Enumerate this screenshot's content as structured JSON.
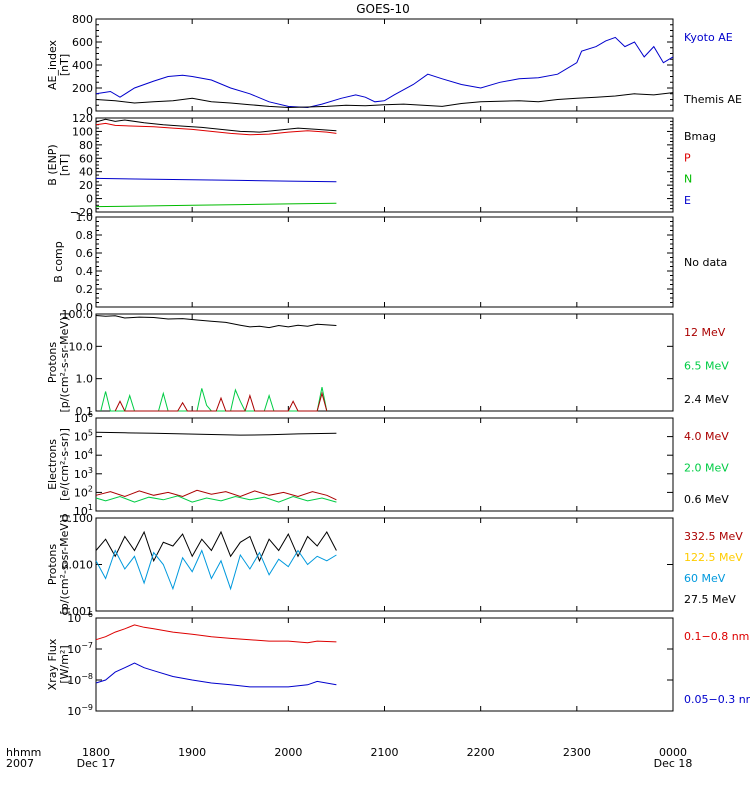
{
  "title": "GOES-10",
  "x_axis": {
    "row_label": "hhmm",
    "year": "2007",
    "ticks": [
      "1800",
      "1900",
      "2000",
      "2100",
      "2200",
      "2300",
      "0000"
    ],
    "tick_hours": [
      0,
      1,
      2,
      3,
      4,
      5,
      6
    ],
    "date_labels": [
      {
        "text": "Dec 17",
        "hour": 0
      },
      {
        "text": "Dec 18",
        "hour": 6
      }
    ],
    "range_hours": [
      0,
      6
    ]
  },
  "chart_data": [
    {
      "type": "line",
      "ylabel": "AE_index [nT]",
      "ylabel_lines": [
        "AE_index",
        "[nT]"
      ],
      "scale": "linear",
      "ylim": [
        0,
        800
      ],
      "ytick_values": [
        0,
        200,
        400,
        600,
        800
      ],
      "ytick_labels": [
        "0",
        "200",
        "400",
        "600",
        "800"
      ],
      "legend": [
        {
          "text": "Kyoto AE",
          "color": "#0000cc"
        },
        {
          "text": "Themis AE",
          "color": "#000000"
        }
      ],
      "series": [
        {
          "name": "Kyoto AE",
          "color": "#0000cc",
          "x": [
            0,
            0.15,
            0.25,
            0.4,
            0.6,
            0.75,
            0.9,
            1.0,
            1.2,
            1.4,
            1.6,
            1.8,
            2.0,
            2.2,
            2.35,
            2.55,
            2.7,
            2.8,
            2.9,
            3.0,
            3.1,
            3.3,
            3.45,
            3.6,
            3.8,
            4.0,
            4.2,
            4.4,
            4.6,
            4.8,
            5.0,
            5.05,
            5.2,
            5.3,
            5.4,
            5.5,
            5.6,
            5.7,
            5.8,
            5.9,
            6.0
          ],
          "y": [
            150,
            170,
            120,
            200,
            260,
            300,
            310,
            300,
            270,
            200,
            150,
            80,
            40,
            30,
            60,
            110,
            140,
            120,
            80,
            90,
            140,
            230,
            320,
            280,
            230,
            200,
            250,
            280,
            290,
            320,
            420,
            520,
            560,
            610,
            640,
            560,
            600,
            470,
            560,
            420,
            470
          ]
        },
        {
          "name": "Themis AE",
          "color": "#000000",
          "x": [
            0,
            0.2,
            0.4,
            0.6,
            0.8,
            1.0,
            1.2,
            1.4,
            1.6,
            1.8,
            2.0,
            2.2,
            2.4,
            2.6,
            2.8,
            3.0,
            3.2,
            3.4,
            3.6,
            3.8,
            4.0,
            4.2,
            4.4,
            4.6,
            4.8,
            5.0,
            5.2,
            5.4,
            5.6,
            5.8,
            6.0
          ],
          "y": [
            100,
            90,
            70,
            80,
            90,
            110,
            80,
            70,
            55,
            40,
            30,
            35,
            40,
            50,
            45,
            55,
            60,
            50,
            40,
            65,
            80,
            85,
            90,
            80,
            100,
            110,
            120,
            130,
            150,
            140,
            160
          ]
        }
      ]
    },
    {
      "type": "line",
      "ylabel": "B (ENP) [nT]",
      "ylabel_lines": [
        "B (ENP)",
        "[nT]"
      ],
      "scale": "linear",
      "ylim": [
        -20,
        120
      ],
      "ytick_values": [
        -20,
        0,
        20,
        40,
        60,
        80,
        100,
        120
      ],
      "ytick_labels": [
        "−20",
        "0",
        "20",
        "40",
        "60",
        "80",
        "100",
        "120"
      ],
      "legend": [
        {
          "text": "Bmag",
          "color": "#000000"
        },
        {
          "text": "P",
          "color": "#dd0000"
        },
        {
          "text": "N",
          "color": "#00bb00"
        },
        {
          "text": "E",
          "color": "#0000cc"
        }
      ],
      "series": [
        {
          "name": "Bmag",
          "color": "#000000",
          "x": [
            0,
            0.1,
            0.2,
            0.3,
            0.5,
            0.7,
            0.9,
            1.1,
            1.3,
            1.5,
            1.7,
            1.9,
            2.1,
            2.3,
            2.5
          ],
          "y": [
            114,
            118,
            115,
            117,
            113,
            110,
            108,
            106,
            103,
            100,
            99,
            102,
            105,
            103,
            101
          ]
        },
        {
          "name": "P",
          "color": "#dd0000",
          "x": [
            0,
            0.1,
            0.2,
            0.4,
            0.6,
            0.8,
            1.0,
            1.2,
            1.4,
            1.6,
            1.8,
            2.0,
            2.2,
            2.4,
            2.5
          ],
          "y": [
            110,
            112,
            109,
            108,
            107,
            105,
            103,
            100,
            97,
            95,
            96,
            99,
            101,
            99,
            97
          ]
        },
        {
          "name": "N",
          "color": "#00bb00",
          "x": [
            0,
            0.5,
            1.0,
            1.5,
            2.0,
            2.5
          ],
          "y": [
            -12,
            -11,
            -10,
            -9,
            -8,
            -7
          ]
        },
        {
          "name": "E",
          "color": "#0000cc",
          "x": [
            0,
            0.5,
            1.0,
            1.5,
            2.0,
            2.5
          ],
          "y": [
            30,
            29,
            28,
            27,
            26,
            25
          ]
        }
      ]
    },
    {
      "type": "line",
      "ylabel": "B comp",
      "ylabel_lines": [
        "B comp"
      ],
      "scale": "linear",
      "ylim": [
        0,
        1
      ],
      "ytick_values": [
        0,
        0.2,
        0.4,
        0.6,
        0.8,
        1.0
      ],
      "ytick_labels": [
        "0.0",
        "0.2",
        "0.4",
        "0.6",
        "0.8",
        "1.0"
      ],
      "legend": [
        {
          "text": "No data",
          "color": "#000000"
        }
      ],
      "series": []
    },
    {
      "type": "line",
      "ylabel": "Protons [p/(cm²-s-sr-MeV)]",
      "ylabel_lines": [
        "Protons",
        "[p/(cm²-s-sr-MeV)]"
      ],
      "scale": "log",
      "ylim": [
        0.1,
        100
      ],
      "ytick_values": [
        0.1,
        1,
        10,
        100
      ],
      "ytick_labels": [
        "0.1",
        "1.0",
        "10.0",
        "100.0"
      ],
      "legend": [
        {
          "text": "12 MeV",
          "color": "#aa0000"
        },
        {
          "text": "6.5 MeV",
          "color": "#00cc44"
        },
        {
          "text": "2.4 MeV",
          "color": "#000000"
        }
      ],
      "series": [
        {
          "name": "2.4 MeV",
          "color": "#000000",
          "x": [
            0,
            0.1,
            0.2,
            0.3,
            0.45,
            0.6,
            0.75,
            0.9,
            1.05,
            1.2,
            1.35,
            1.5,
            1.6,
            1.7,
            1.8,
            1.9,
            2.0,
            2.1,
            2.2,
            2.3,
            2.4,
            2.5
          ],
          "y": [
            90,
            85,
            88,
            75,
            80,
            78,
            70,
            72,
            65,
            60,
            55,
            45,
            40,
            42,
            38,
            44,
            40,
            45,
            42,
            48,
            46,
            44
          ]
        },
        {
          "name": "6.5 MeV",
          "color": "#00cc44",
          "x": [
            0.05,
            0.1,
            0.15,
            0.3,
            0.35,
            0.4,
            0.65,
            0.7,
            0.75,
            1.05,
            1.1,
            1.15,
            1.2,
            1.4,
            1.45,
            1.5,
            1.55,
            1.75,
            1.8,
            1.85,
            2.3,
            2.35,
            2.4
          ],
          "y": [
            0.1,
            0.4,
            0.1,
            0.1,
            0.3,
            0.1,
            0.1,
            0.35,
            0.1,
            0.1,
            0.5,
            0.15,
            0.1,
            0.1,
            0.45,
            0.2,
            0.1,
            0.1,
            0.3,
            0.1,
            0.1,
            0.55,
            0.1
          ]
        },
        {
          "name": "12 MeV",
          "color": "#aa0000",
          "x": [
            0.2,
            0.25,
            0.3,
            0.85,
            0.9,
            0.95,
            1.25,
            1.3,
            1.35,
            1.55,
            1.6,
            1.65,
            2.0,
            2.05,
            2.1,
            2.3,
            2.35,
            2.4
          ],
          "y": [
            0.1,
            0.2,
            0.1,
            0.1,
            0.18,
            0.1,
            0.1,
            0.25,
            0.1,
            0.1,
            0.3,
            0.1,
            0.1,
            0.2,
            0.1,
            0.1,
            0.35,
            0.1
          ]
        }
      ]
    },
    {
      "type": "line",
      "ylabel": "Electrons [e/(cm²-s-sr)]",
      "ylabel_lines": [
        "Electrons",
        "[e/(cm²-s-sr)]"
      ],
      "scale": "log",
      "ylim": [
        10,
        1000000
      ],
      "ytick_values": [
        10,
        100,
        1000,
        10000,
        100000,
        1000000
      ],
      "ytick_exponents": [
        "1",
        "2",
        "3",
        "4",
        "5",
        "6"
      ],
      "ytick_base": "10",
      "legend": [
        {
          "text": "4.0 MeV",
          "color": "#aa0000"
        },
        {
          "text": "2.0 MeV",
          "color": "#00cc44"
        },
        {
          "text": "0.6 MeV",
          "color": "#000000"
        }
      ],
      "series": [
        {
          "name": "0.6 MeV",
          "color": "#000000",
          "x": [
            0,
            0.3,
            0.6,
            0.9,
            1.2,
            1.5,
            1.8,
            2.1,
            2.5
          ],
          "y": [
            170000,
            160000,
            150000,
            140000,
            130000,
            120000,
            125000,
            140000,
            150000
          ]
        },
        {
          "name": "4.0 MeV",
          "color": "#aa0000",
          "x": [
            0,
            0.15,
            0.3,
            0.45,
            0.6,
            0.75,
            0.9,
            1.05,
            1.2,
            1.35,
            1.5,
            1.65,
            1.8,
            1.95,
            2.1,
            2.25,
            2.4,
            2.5
          ],
          "y": [
            70,
            110,
            60,
            120,
            70,
            100,
            60,
            130,
            80,
            110,
            60,
            120,
            70,
            100,
            60,
            110,
            70,
            40
          ]
        },
        {
          "name": "2.0 MeV",
          "color": "#00cc44",
          "x": [
            0,
            0.1,
            0.25,
            0.4,
            0.55,
            0.7,
            0.85,
            1.0,
            1.15,
            1.3,
            1.45,
            1.6,
            1.75,
            1.9,
            2.05,
            2.2,
            2.35,
            2.5
          ],
          "y": [
            50,
            35,
            60,
            30,
            55,
            40,
            65,
            30,
            50,
            35,
            60,
            40,
            55,
            30,
            60,
            35,
            50,
            30
          ]
        }
      ]
    },
    {
      "type": "line",
      "ylabel": "Protons [p/(cm²-s-sr-MeV)]",
      "ylabel_lines": [
        "Protons",
        "[p/(cm²-s-sr-MeV)]"
      ],
      "scale": "log",
      "ylim": [
        0.001,
        0.1
      ],
      "ytick_values": [
        0.001,
        0.01,
        0.1
      ],
      "ytick_labels": [
        "0.001",
        "0.010",
        "0.100"
      ],
      "legend": [
        {
          "text": "332.5 MeV",
          "color": "#aa0000"
        },
        {
          "text": "122.5 MeV",
          "color": "#ffcc00"
        },
        {
          "text": "60 MeV",
          "color": "#0099dd"
        },
        {
          "text": "27.5 MeV",
          "color": "#000000"
        }
      ],
      "series": [
        {
          "name": "27.5 MeV",
          "color": "#000000",
          "x": [
            0,
            0.1,
            0.2,
            0.3,
            0.4,
            0.5,
            0.6,
            0.7,
            0.8,
            0.9,
            1.0,
            1.1,
            1.2,
            1.3,
            1.4,
            1.5,
            1.6,
            1.7,
            1.8,
            1.9,
            2.0,
            2.1,
            2.2,
            2.3,
            2.4,
            2.5
          ],
          "y": [
            0.02,
            0.035,
            0.015,
            0.04,
            0.02,
            0.05,
            0.012,
            0.03,
            0.025,
            0.045,
            0.015,
            0.035,
            0.02,
            0.05,
            0.015,
            0.03,
            0.04,
            0.012,
            0.035,
            0.02,
            0.045,
            0.015,
            0.04,
            0.025,
            0.05,
            0.02
          ]
        },
        {
          "name": "60 MeV",
          "color": "#0099dd",
          "x": [
            0,
            0.1,
            0.2,
            0.3,
            0.4,
            0.5,
            0.6,
            0.7,
            0.8,
            0.9,
            1.0,
            1.1,
            1.2,
            1.3,
            1.4,
            1.5,
            1.6,
            1.7,
            1.8,
            1.9,
            2.0,
            2.1,
            2.2,
            2.3,
            2.4,
            2.5
          ],
          "y": [
            0.012,
            0.005,
            0.02,
            0.008,
            0.015,
            0.004,
            0.018,
            0.01,
            0.003,
            0.014,
            0.007,
            0.02,
            0.005,
            0.012,
            0.003,
            0.016,
            0.008,
            0.018,
            0.006,
            0.013,
            0.009,
            0.02,
            0.01,
            0.015,
            0.012,
            0.016
          ]
        }
      ]
    },
    {
      "type": "line",
      "ylabel": "Xray Flux [W/m²]",
      "ylabel_lines": [
        "Xray Flux",
        "[W/m²]"
      ],
      "scale": "log",
      "ylim": [
        1e-09,
        1e-06
      ],
      "ytick_values": [
        1e-09,
        1e-08,
        1e-07,
        1e-06
      ],
      "ytick_exponents": [
        "−9",
        "−8",
        "−7",
        "−6"
      ],
      "ytick_base": "10",
      "legend": [
        {
          "text": "0.1−0.8 nm",
          "color": "#dd0000"
        },
        {
          "text": "0.05−0.3 nm",
          "color": "#0000cc"
        }
      ],
      "series": [
        {
          "name": "0.1−0.8 nm",
          "color": "#dd0000",
          "x": [
            0,
            0.1,
            0.2,
            0.3,
            0.4,
            0.5,
            0.6,
            0.8,
            1.0,
            1.2,
            1.4,
            1.6,
            1.8,
            2.0,
            2.2,
            2.3,
            2.5
          ],
          "y": [
            2e-07,
            2.5e-07,
            3.5e-07,
            4.5e-07,
            6e-07,
            5e-07,
            4.5e-07,
            3.5e-07,
            3e-07,
            2.5e-07,
            2.2e-07,
            2e-07,
            1.8e-07,
            1.8e-07,
            1.6e-07,
            1.8e-07,
            1.7e-07
          ]
        },
        {
          "name": "0.05−0.3 nm",
          "color": "#0000cc",
          "x": [
            0,
            0.1,
            0.2,
            0.3,
            0.4,
            0.5,
            0.6,
            0.8,
            1.0,
            1.2,
            1.4,
            1.6,
            1.8,
            2.0,
            2.2,
            2.3,
            2.5
          ],
          "y": [
            8e-09,
            1e-08,
            1.8e-08,
            2.5e-08,
            3.5e-08,
            2.5e-08,
            2e-08,
            1.3e-08,
            1e-08,
            8e-09,
            7e-09,
            6e-09,
            6e-09,
            6e-09,
            7e-09,
            9e-09,
            7e-09
          ]
        }
      ]
    }
  ]
}
